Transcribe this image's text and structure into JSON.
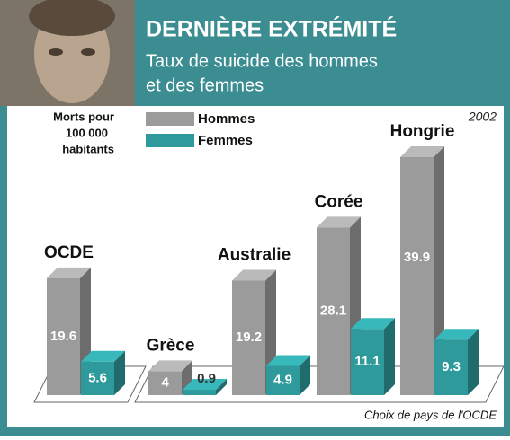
{
  "chart_data": {
    "type": "bar3d",
    "title": "DERNIÈRE EXTRÉMITÉ",
    "subtitle": [
      "Taux de suicide des hommes",
      "et des femmes"
    ],
    "y_label": [
      "Morts pour",
      "100 000",
      "habitants"
    ],
    "year": "2002",
    "source": "Choix de pays de l'OCDE",
    "categories": [
      "OCDE",
      "Grèce",
      "Australie",
      "Corée",
      "Hongrie"
    ],
    "series": [
      {
        "name": "Hommes",
        "color": "#9b9b9b",
        "values": [
          19.6,
          4,
          19.2,
          28.1,
          39.9
        ]
      },
      {
        "name": "Femmes",
        "color": "#2e9a9c",
        "values": [
          5.6,
          0.9,
          4.9,
          11.1,
          9.3
        ]
      }
    ]
  }
}
